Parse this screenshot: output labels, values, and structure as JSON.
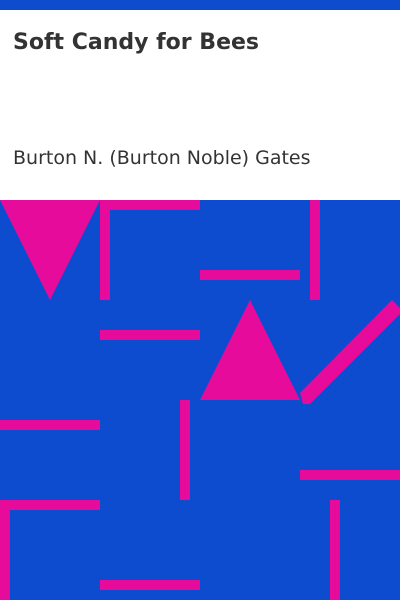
{
  "cover": {
    "title": "Soft Candy for Bees",
    "author": "Burton N. (Burton Noble) Gates"
  },
  "colors": {
    "background_blue": "#0e4ccf",
    "accent_pink": "#e60b9b",
    "text": "#333333",
    "title_bg": "#ffffff"
  }
}
